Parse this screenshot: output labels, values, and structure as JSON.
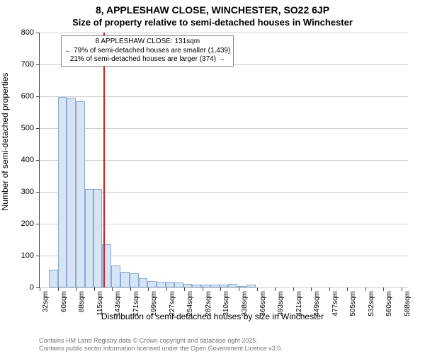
{
  "title_main": "8, APPLESHAW CLOSE, WINCHESTER, SO22 6JP",
  "title_sub": "Size of property relative to semi-detached houses in Winchester",
  "ylabel": "Number of semi-detached properties",
  "xlabel": "Distribution of semi-detached houses by size in Winchester",
  "chart": {
    "type": "histogram",
    "background_color": "#ffffff",
    "grid_color": "#d0d0d0",
    "axis_color": "#444444",
    "bar_fill": "#d6e4f5",
    "bar_border": "#8aa8d0",
    "marker_color": "#d02020",
    "ylim": [
      0,
      800
    ],
    "ytick_step": 100,
    "yticks": [
      0,
      100,
      200,
      300,
      400,
      500,
      600,
      700,
      800
    ],
    "xlim": [
      32,
      602
    ],
    "xtick_step": 28,
    "xtick_labels": [
      "32sqm",
      "60sqm",
      "88sqm",
      "115sqm",
      "143sqm",
      "171sqm",
      "199sqm",
      "227sqm",
      "254sqm",
      "282sqm",
      "310sqm",
      "338sqm",
      "366sqm",
      "393sqm",
      "421sqm",
      "449sqm",
      "477sqm",
      "505sqm",
      "532sqm",
      "560sqm",
      "588sqm"
    ],
    "bars": [
      {
        "x": 46,
        "w": 14,
        "v": 55
      },
      {
        "x": 60,
        "w": 14,
        "v": 598
      },
      {
        "x": 74,
        "w": 14,
        "v": 595
      },
      {
        "x": 88,
        "w": 14,
        "v": 585
      },
      {
        "x": 102,
        "w": 13,
        "v": 310
      },
      {
        "x": 115,
        "w": 14,
        "v": 310
      },
      {
        "x": 129,
        "w": 14,
        "v": 135
      },
      {
        "x": 143,
        "w": 14,
        "v": 70
      },
      {
        "x": 157,
        "w": 14,
        "v": 50
      },
      {
        "x": 171,
        "w": 14,
        "v": 45
      },
      {
        "x": 185,
        "w": 14,
        "v": 30
      },
      {
        "x": 199,
        "w": 14,
        "v": 20
      },
      {
        "x": 213,
        "w": 14,
        "v": 18
      },
      {
        "x": 227,
        "w": 13,
        "v": 18
      },
      {
        "x": 240,
        "w": 14,
        "v": 15
      },
      {
        "x": 254,
        "w": 14,
        "v": 12
      },
      {
        "x": 268,
        "w": 14,
        "v": 10
      },
      {
        "x": 282,
        "w": 14,
        "v": 10
      },
      {
        "x": 296,
        "w": 14,
        "v": 8
      },
      {
        "x": 310,
        "w": 14,
        "v": 8
      },
      {
        "x": 324,
        "w": 14,
        "v": 12
      },
      {
        "x": 338,
        "w": 14,
        "v": 5
      },
      {
        "x": 352,
        "w": 14,
        "v": 10
      }
    ],
    "marker_x": 131,
    "annotation": {
      "line1": "8 APPLESHAW CLOSE: 131sqm",
      "line2": "← 79% of semi-detached houses are smaller (1,439)",
      "line3": "21% of semi-detached houses are larger (374) →"
    },
    "font_family": "Arial, Helvetica, sans-serif",
    "title_fontsize": 14,
    "sub_fontsize": 13,
    "label_fontsize": 12,
    "tick_fontsize": 11,
    "xtick_fontsize": 10,
    "annotation_fontsize": 10
  },
  "footer": {
    "line1": "Contains HM Land Registry data © Crown copyright and database right 2025.",
    "line2": "Contains public sector information licensed under the Open Government Licence v3.0."
  }
}
